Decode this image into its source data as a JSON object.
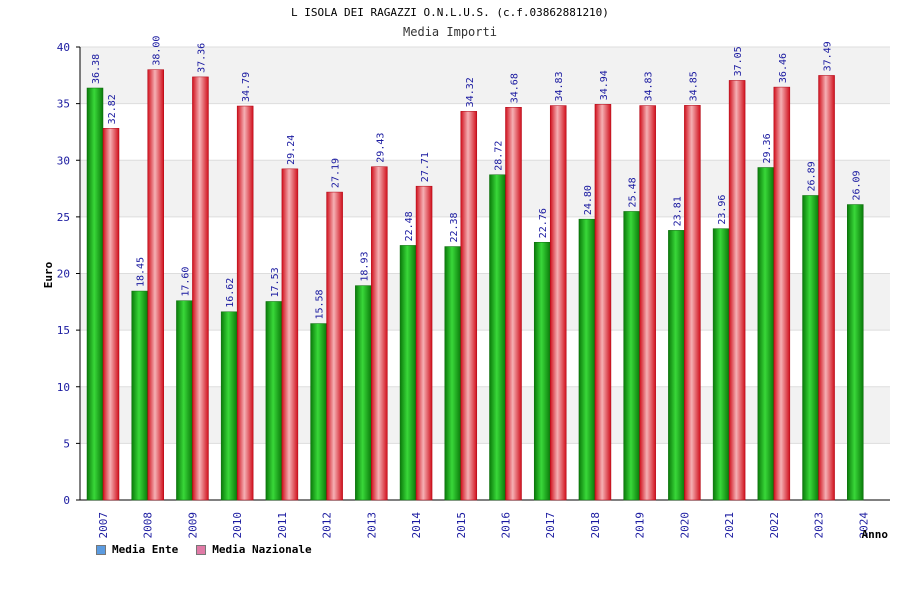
{
  "title": "L ISOLA DEI RAGAZZI O.N.L.U.S. (c.f.03862881210)",
  "subtitle": "Media Importi",
  "colors": {
    "ente": "#1aa51a",
    "nazionale": "#e8323c",
    "legend_ente": "#5b9be0",
    "legend_nazionale": "#e07aa6",
    "axis_text": "#1a1aa0",
    "grid_band": "#f2f2f2"
  },
  "chart_data": {
    "type": "bar",
    "xlabel": "Anno",
    "ylabel": "Euro",
    "ylim": [
      0,
      40
    ],
    "yticks": [
      0,
      5,
      10,
      15,
      20,
      25,
      30,
      35,
      40
    ],
    "grid": true,
    "legend_position": "bottom-left",
    "categories": [
      "2007",
      "2008",
      "2009",
      "2010",
      "2011",
      "2012",
      "2013",
      "2014",
      "2015",
      "2016",
      "2017",
      "2018",
      "2019",
      "2020",
      "2021",
      "2022",
      "2023",
      "2024"
    ],
    "series": [
      {
        "name": "Media Ente",
        "values": [
          36.38,
          18.45,
          17.6,
          16.62,
          17.53,
          15.58,
          18.93,
          22.48,
          22.38,
          28.72,
          22.76,
          24.8,
          25.48,
          23.81,
          23.96,
          29.36,
          26.89,
          26.09
        ],
        "labels": [
          "36.38",
          "18.45",
          "17.60",
          "16.62",
          "17.53",
          "15.58",
          "18.93",
          "22.48",
          "22.38",
          "28.72",
          "22.76",
          "24.80",
          "25.48",
          "23.81",
          "23.96",
          "29.36",
          "26.89",
          "26.09"
        ]
      },
      {
        "name": "Media Nazionale",
        "values": [
          32.82,
          38.0,
          37.36,
          34.79,
          29.24,
          27.19,
          29.43,
          27.71,
          34.32,
          34.68,
          34.83,
          34.94,
          34.83,
          34.85,
          37.05,
          36.46,
          37.49,
          null
        ],
        "labels": [
          "32.82",
          "38.00",
          "37.36",
          "34.79",
          "29.24",
          "27.19",
          "29.43",
          "27.71",
          "34.32",
          "34.68",
          "34.83",
          "34.94",
          "34.83",
          "34.85",
          "37.05",
          "36.46",
          "37.49",
          ""
        ]
      }
    ]
  }
}
